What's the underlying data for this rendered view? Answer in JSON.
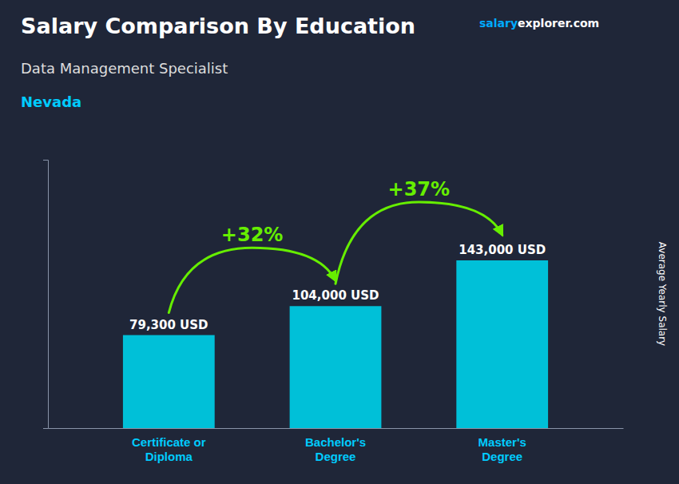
{
  "chart_data": {
    "type": "bar",
    "title": "Salary Comparison By Education",
    "subtitle": "Data Management Specialist",
    "y_label": "Average Yearly Salary",
    "categories": [
      "Certificate or\nDiploma",
      "Bachelor's\nDegree",
      "Master's\nDegree"
    ],
    "values": [
      79300,
      104000,
      143000
    ],
    "value_labels": [
      "79,300 USD",
      "104,000 USD",
      "143,000 USD"
    ],
    "data_labels": true,
    "color": "#00c0d8",
    "ylim": [
      0,
      228800
    ],
    "yticks": [],
    "tick_labels": "x",
    "grid": false,
    "annotations": [
      {
        "text": "Nevada"
      },
      {
        "text": "salary"
      },
      {
        "text": "explorer.com"
      },
      {
        "text": "+32%"
      },
      {
        "text": "+37%"
      }
    ]
  }
}
